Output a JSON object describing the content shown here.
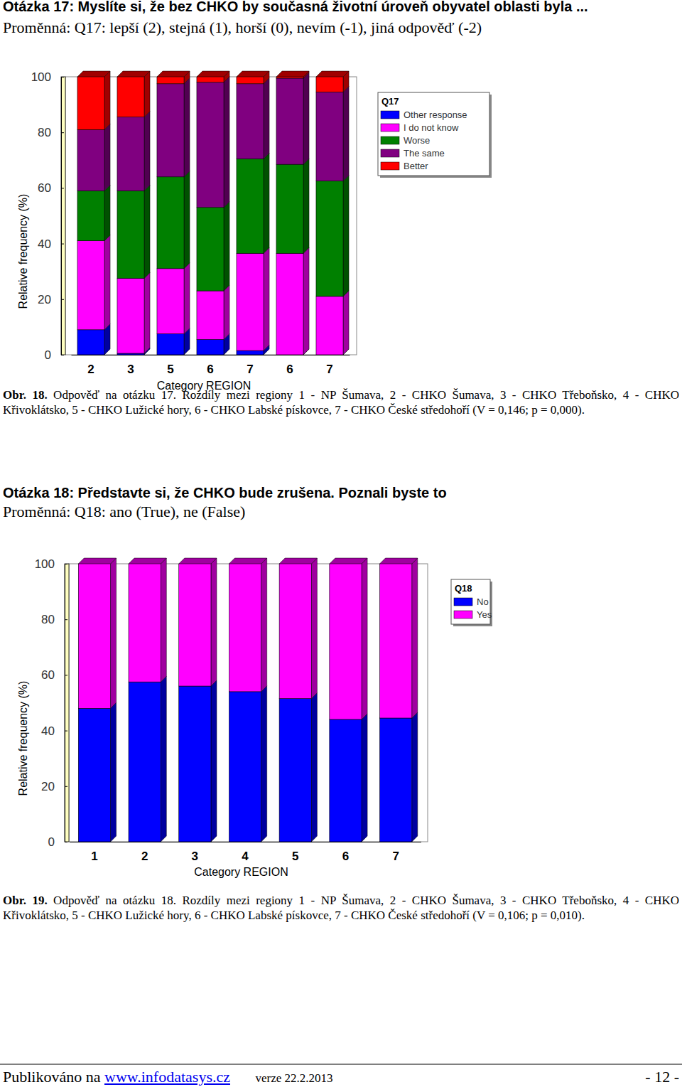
{
  "chart_data": [
    {
      "type": "bar",
      "stacked": true,
      "categories": [
        "2",
        "3",
        "5",
        "6",
        "7",
        "6",
        "7"
      ],
      "series": [
        {
          "name": "Other response",
          "color": "#0000ff",
          "values": [
            9,
            0.5,
            7.5,
            5.5,
            1.5,
            0,
            0
          ]
        },
        {
          "name": "I do not know",
          "color": "#ff00ff",
          "values": [
            32,
            27,
            23.5,
            17.5,
            35,
            36.5,
            21
          ]
        },
        {
          "name": "Worse",
          "color": "#008000",
          "values": [
            18,
            31.5,
            33,
            30,
            34,
            32,
            41.5
          ]
        },
        {
          "name": "The same",
          "color": "#800080",
          "values": [
            22,
            26.5,
            33.5,
            45,
            27,
            31,
            32
          ]
        },
        {
          "name": "Better",
          "color": "#ff0000",
          "values": [
            19,
            14.5,
            2.5,
            2,
            2.5,
            0.5,
            5.5
          ]
        }
      ],
      "ylim": [
        0,
        100
      ],
      "yticks": [
        0,
        20,
        40,
        60,
        80,
        100
      ],
      "x_label": "Category REGION",
      "y_label": "Relative frequency (%)",
      "legend_title": "Q17",
      "legend": "upper right"
    },
    {
      "type": "bar",
      "stacked": true,
      "categories": [
        "1",
        "2",
        "3",
        "4",
        "5",
        "6",
        "7"
      ],
      "series": [
        {
          "name": "No",
          "color": "#0000ff",
          "values": [
            48,
            57.5,
            56,
            54,
            51.5,
            44,
            44.5
          ]
        },
        {
          "name": "Yes",
          "color": "#ff00ff",
          "values": [
            52,
            42.5,
            44,
            46,
            48.5,
            56,
            55.5
          ]
        }
      ],
      "ylim": [
        0,
        100
      ],
      "yticks": [
        0,
        20,
        40,
        60,
        80,
        100
      ],
      "x_label": "Category REGION",
      "y_label": "Relative frequency (%)",
      "legend_title": "Q18",
      "legend": "upper right"
    }
  ],
  "page": {
    "sections": [
      {
        "heading": "Otázka 17: Myslíte si, že bez CHKO by současná životní úroveň obyvatel oblasti byla ...",
        "variable": "Proměnná: Q17: lepší (2), stejná (1), horší (0), nevím (-1), jiná odpověď (-2)",
        "caption_label": "Obr. 18.",
        "caption": "Odpověď na otázku 17. Rozdíly mezi regiony 1 - NP Šumava, 2 - CHKO Šumava, 3 - CHKO Třeboňsko, 4 - CHKO Křivoklátsko, 5 - CHKO Lužické hory, 6 - CHKO Labské pískovce, 7 - CHKO České středohoří (V = 0,146; p = 0,000)."
      },
      {
        "heading": "Otázka 18: Představte si, že CHKO bude zrušena. Poznali byste to",
        "variable": "Proměnná: Q18: ano (True), ne (False)",
        "caption_label": "Obr. 19.",
        "caption": "Odpověď na otázku 18. Rozdíly mezi regiony 1 - NP Šumava, 2 - CHKO Šumava, 3 - CHKO Třeboňsko, 4 - CHKO Křivoklátsko, 5 - CHKO Lužické hory, 6 - CHKO Labské pískovce, 7 - CHKO České středohoří (V = 0,106; p = 0,010)."
      }
    ],
    "footer": {
      "prefix": "Publikováno na",
      "link": "www.infodatasys.cz",
      "version": "verze 22.2.2013",
      "page_number": "- 12 -"
    }
  }
}
